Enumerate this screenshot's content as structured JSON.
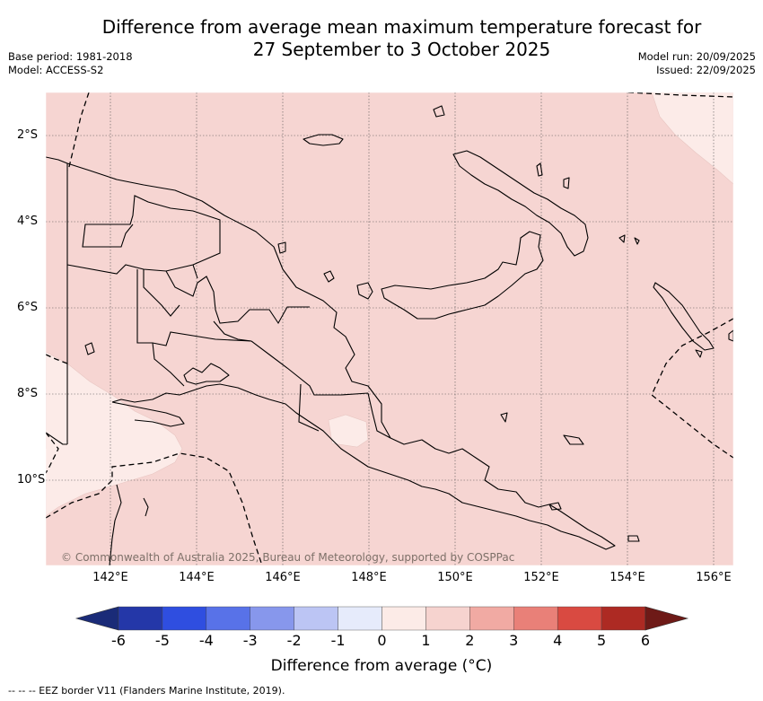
{
  "title": {
    "line1": "Difference from average mean maximum temperature forecast for",
    "line2": "27 September to 3 October 2025"
  },
  "metadata": {
    "base_period": "Base period: 1981-2018",
    "model": "Model: ACCESS-S2",
    "model_run": "Model run: 20/09/2025",
    "issued": "Issued: 22/09/2025"
  },
  "map": {
    "region": "Papua New Guinea",
    "lon_labels": [
      "142°E",
      "144°E",
      "146°E",
      "148°E",
      "150°E",
      "152°E",
      "154°E",
      "156°E"
    ],
    "lat_labels": [
      "2°S",
      "4°S",
      "6°S",
      "8°S",
      "10°S"
    ],
    "dominant_anomaly_range_c": [
      1,
      2
    ],
    "secondary_anomaly_range_c": [
      0,
      1
    ],
    "copyright": "© Commonwealth of Australia 2025, Bureau of Meteorology, supported by COSPPac"
  },
  "colorbar": {
    "label": "Difference from average (°C)",
    "ticks": [
      "-6",
      "-5",
      "-4",
      "-3",
      "-2",
      "-1",
      "0",
      "1",
      "2",
      "3",
      "4",
      "5",
      "6"
    ],
    "colors": [
      "#2437a8",
      "#2f4ee0",
      "#5872e8",
      "#8797ec",
      "#bcc5f4",
      "#e6ebfb",
      "#fcebe7",
      "#f6d3cf",
      "#f1aaa3",
      "#e98078",
      "#d94a41",
      "#ad2a23"
    ],
    "under_color": "#1a2b78",
    "over_color": "#6e1a17"
  },
  "footnote": "--  --  -- EEZ border V11 (Flanders Marine Institute, 2019)."
}
